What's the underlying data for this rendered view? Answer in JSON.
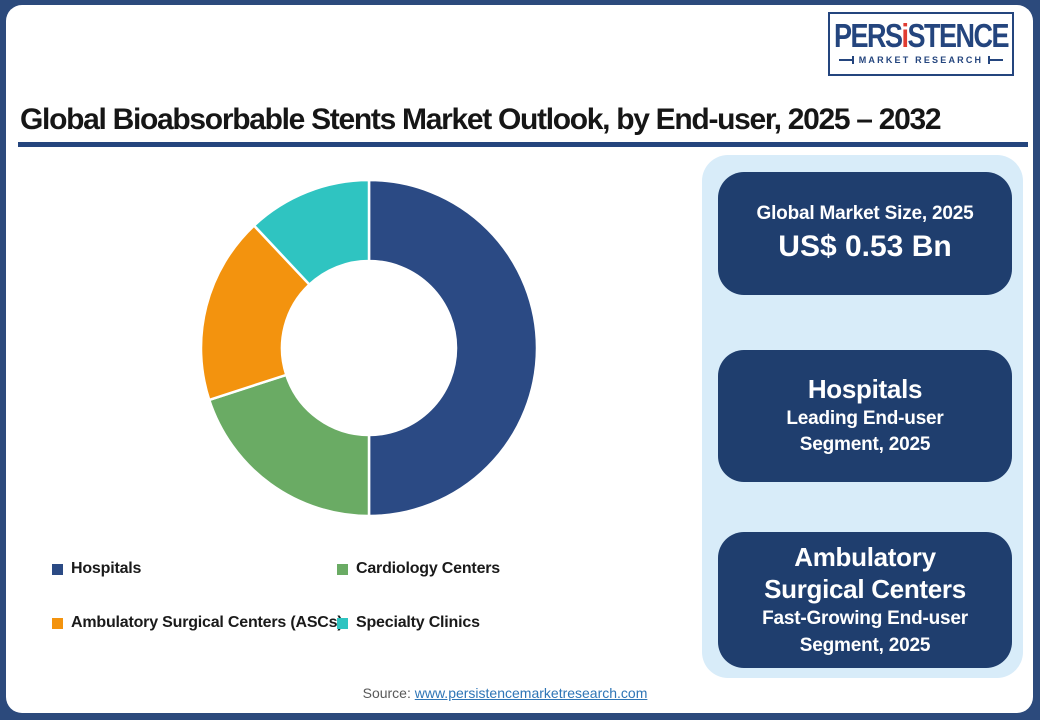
{
  "logo": {
    "brand_pre": "PERS",
    "brand_i": "i",
    "brand_post": "STENCE",
    "subtitle": "MARKET RESEARCH"
  },
  "header": {
    "title": "Global Bioabsorbable Stents Market Outlook, by End-user, 2025 – 2032"
  },
  "chart_data": {
    "type": "pie",
    "variant": "donut",
    "title": "Global Bioabsorbable Stents Market Outlook, by End-user, 2025 – 2032",
    "values_note": "percent of ring, estimated from segment arc angles (no data labels shown)",
    "start_angle_deg": 0,
    "direction": "clockwise",
    "inner_radius_ratio": 0.52,
    "legend_position": "bottom",
    "segments": [
      {
        "label": "Hospitals",
        "value": 50,
        "color": "#2B4A84"
      },
      {
        "label": "Cardiology Centers",
        "value": 20,
        "color": "#6AAB64"
      },
      {
        "label": "Ambulatory Surgical Centers (ASCs)",
        "value": 18,
        "color": "#F3930E"
      },
      {
        "label": "Specialty Clinics",
        "value": 12,
        "color": "#2FC4C1"
      }
    ]
  },
  "panel": {
    "cards": {
      "market_size": {
        "line1": "Global Market Size, 2025",
        "value": "US$ 0.53 Bn"
      },
      "leading": {
        "title": "Hospitals",
        "sub1": "Leading End-user",
        "sub2": "Segment, 2025"
      },
      "fast_growing": {
        "title1": "Ambulatory",
        "title2": "Surgical Centers",
        "sub1": "Fast-Growing End-user",
        "sub2": "Segment, 2025"
      }
    }
  },
  "footer": {
    "source_label": "Source:",
    "source_link": "www.persistencemarketresearch.com"
  },
  "colors": {
    "frame": "#2C4A7C",
    "underline": "#24457D",
    "panel_bg": "#D8ECF9",
    "card_bg": "#1F3E6E",
    "link": "#2E75B6",
    "source_label": "#595959",
    "navy_text": "#24457E",
    "logo_red": "#E03C31",
    "donut_divider": "#FFFFFF"
  }
}
